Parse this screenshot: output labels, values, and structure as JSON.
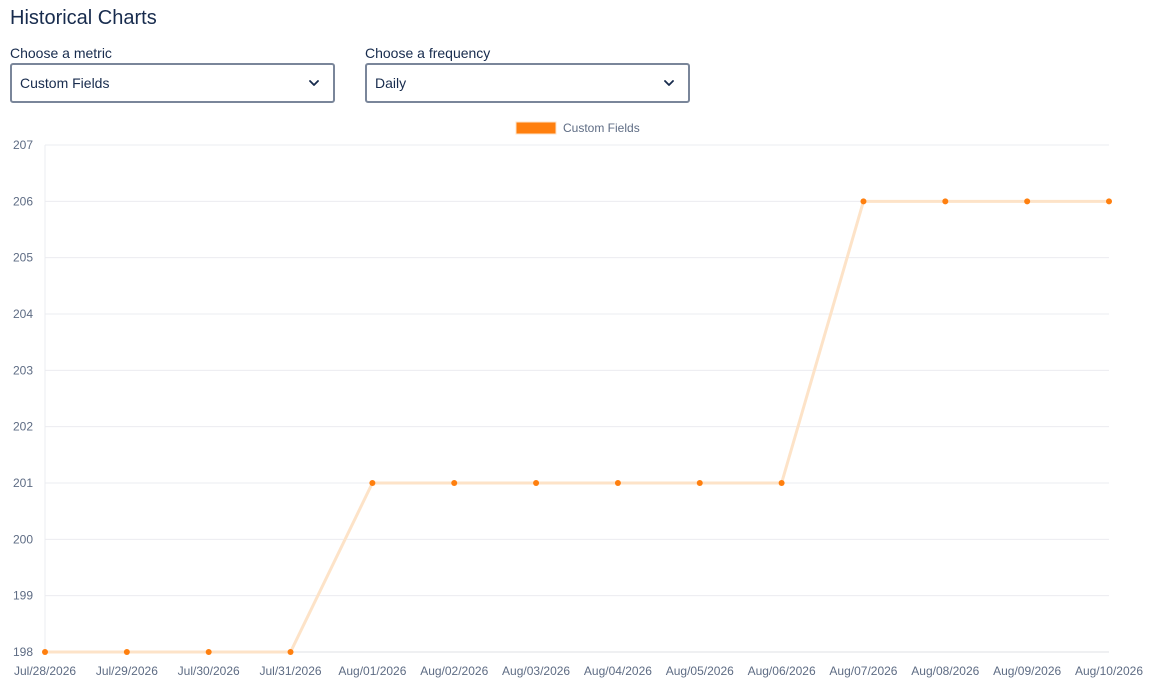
{
  "page": {
    "title": "Historical Charts"
  },
  "metric_select": {
    "label": "Choose a metric",
    "value": "Custom Fields"
  },
  "frequency_select": {
    "label": "Choose a frequency",
    "value": "Daily"
  },
  "icons": {
    "dropdown": "chevron-down-icon"
  },
  "chart_data": {
    "type": "line",
    "x": [
      "Jul/28/2026",
      "Jul/29/2026",
      "Jul/30/2026",
      "Jul/31/2026",
      "Aug/01/2026",
      "Aug/02/2026",
      "Aug/03/2026",
      "Aug/04/2026",
      "Aug/05/2026",
      "Aug/06/2026",
      "Aug/07/2026",
      "Aug/08/2026",
      "Aug/09/2026",
      "Aug/10/2026"
    ],
    "series": [
      {
        "name": "Custom Fields",
        "values": [
          198,
          198,
          198,
          198,
          201,
          201,
          201,
          201,
          201,
          201,
          206,
          206,
          206,
          206
        ],
        "point_color": "#ff7f0e",
        "line_color": "#fde3c8"
      }
    ],
    "ylim": [
      198,
      207
    ],
    "yticks": [
      198,
      199,
      200,
      201,
      202,
      203,
      204,
      205,
      206,
      207
    ],
    "grid": true,
    "legend": "top-center"
  }
}
